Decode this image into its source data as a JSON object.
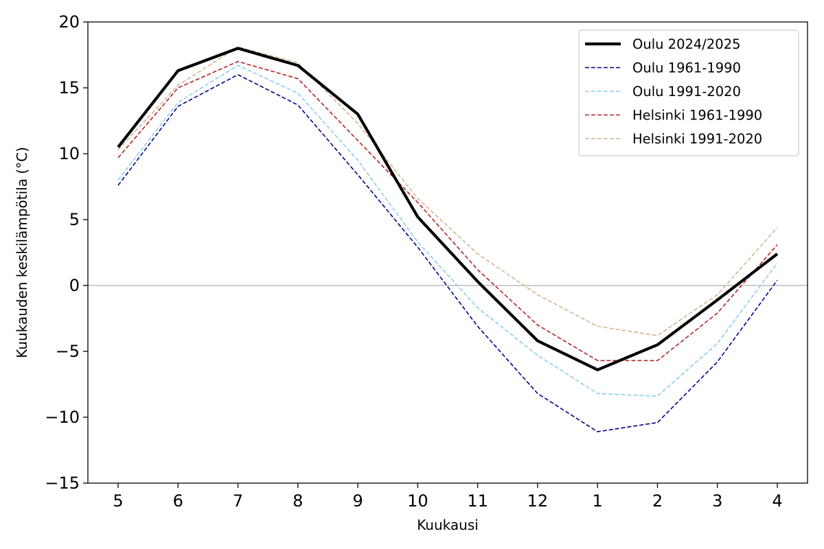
{
  "chart_data": {
    "type": "line",
    "title": "",
    "xlabel": "Kuukausi",
    "ylabel": "Kuukauden keskilämpötila (°C)",
    "categories": [
      "5",
      "6",
      "7",
      "8",
      "9",
      "10",
      "11",
      "12",
      "1",
      "2",
      "3",
      "4"
    ],
    "ylim": [
      -15,
      20
    ],
    "yticks": [
      20,
      15,
      10,
      5,
      0,
      -5,
      -10,
      -15
    ],
    "ytick_labels": [
      "20",
      "15",
      "10",
      "5",
      "0",
      "−5",
      "−10",
      "−15"
    ],
    "zero_line": true,
    "grid": false,
    "legend_position": "top-right",
    "series": [
      {
        "name": "Oulu 2024/2025",
        "color": "#000000",
        "style": "solid",
        "values": [
          10.5,
          16.3,
          18.0,
          16.7,
          13.0,
          5.2,
          0.3,
          -4.2,
          -6.4,
          -4.5,
          -1.1,
          2.4
        ]
      },
      {
        "name": "Oulu 1961-1990",
        "color": "#00008b",
        "style": "dashed",
        "values": [
          7.6,
          13.6,
          16.0,
          13.7,
          8.4,
          2.9,
          -3.1,
          -8.2,
          -11.1,
          -10.4,
          -5.8,
          0.4
        ]
      },
      {
        "name": "Oulu 1991-2020",
        "color": "#87ceeb",
        "style": "dashed",
        "values": [
          8.0,
          13.9,
          16.7,
          14.6,
          9.5,
          3.3,
          -1.7,
          -5.3,
          -8.2,
          -8.4,
          -4.4,
          1.7
        ]
      },
      {
        "name": "Helsinki 1961-1990",
        "color": "#b22222",
        "style": "dashed",
        "values": [
          9.7,
          15.0,
          17.0,
          15.7,
          11.0,
          6.3,
          1.2,
          -3.0,
          -5.7,
          -5.7,
          -2.1,
          3.1
        ]
      },
      {
        "name": "Helsinki 1991-2020",
        "color": "#d2b48c",
        "style": "dashed",
        "values": [
          10.3,
          15.2,
          18.1,
          16.9,
          12.3,
          6.6,
          2.4,
          -0.7,
          -3.1,
          -3.8,
          -0.7,
          4.4
        ]
      }
    ]
  }
}
